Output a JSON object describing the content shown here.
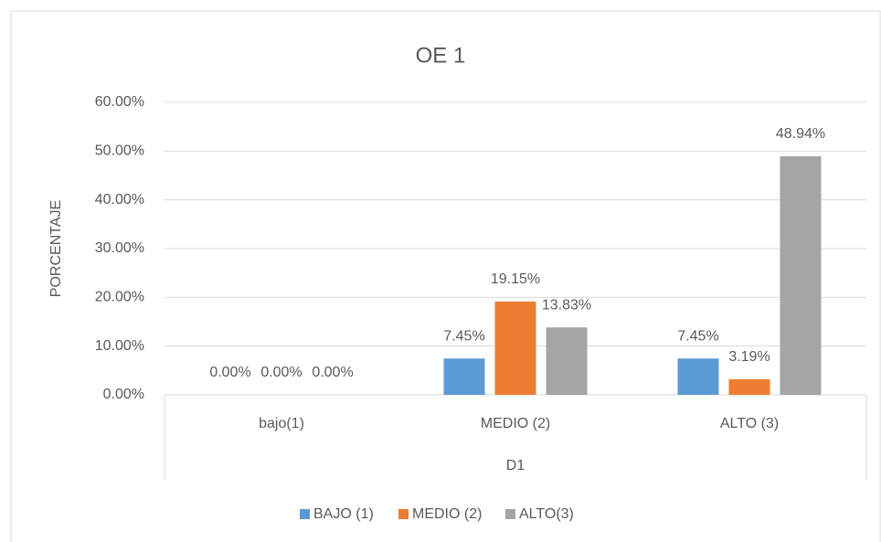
{
  "chart_data": {
    "type": "bar",
    "title": "OE 1",
    "y_label": "PORCENTAJE",
    "x_label": "D1",
    "categories": [
      "bajo(1)",
      "MEDIO (2)",
      "ALTO (3)"
    ],
    "series": [
      {
        "name": "BAJO (1)",
        "color": "#5b9bd5",
        "values": [
          0,
          7.45,
          7.45
        ],
        "value_labels": [
          "0.00%",
          "7.45%",
          "7.45%"
        ]
      },
      {
        "name": "MEDIO (2)",
        "color": "#ed7d31",
        "values": [
          0,
          19.15,
          3.19
        ],
        "value_labels": [
          "0.00%",
          "19.15%",
          "3.19%"
        ]
      },
      {
        "name": "ALTO(3)",
        "color": "#a5a5a5",
        "values": [
          0,
          13.83,
          48.94
        ],
        "value_labels": [
          "0.00%",
          "13.83%",
          "48.94%"
        ]
      }
    ],
    "ylim": [
      0,
      60
    ],
    "yticks": [
      {
        "value": 0,
        "label": "0.00%"
      },
      {
        "value": 10,
        "label": "10.00%"
      },
      {
        "value": 20,
        "label": "20.00%"
      },
      {
        "value": 30,
        "label": "30.00%"
      },
      {
        "value": 40,
        "label": "40.00%"
      },
      {
        "value": 50,
        "label": "50.00%"
      },
      {
        "value": 60,
        "label": "60.00%"
      }
    ],
    "grid": true,
    "legend": "bottom"
  }
}
